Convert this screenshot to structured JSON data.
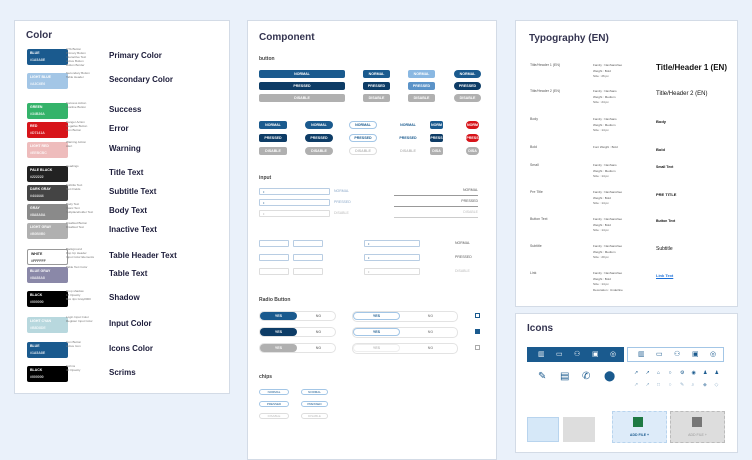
{
  "color": {
    "title": "Color",
    "rows": [
      {
        "swatch": "BLUE",
        "code": "#1A5A8E",
        "bg": "#1a5a8e",
        "desc": [
          "CTA Button",
          "Primary Button",
          "Interactive Text",
          "Active Button",
          "Button Border"
        ],
        "label": "Primary Color"
      },
      {
        "swatch": "LIGHT BLUE",
        "code": "#A3C6E6",
        "bg": "#a3c6e6",
        "desc": [
          "Secondary Button",
          "Table Header"
        ],
        "label": "Secondary Color"
      },
      {
        "swatch": "GREEN",
        "code": "#34B36A",
        "bg": "#34b36a",
        "desc": [
          "Success Action",
          "Positive Button"
        ],
        "label": "Success"
      },
      {
        "swatch": "RED",
        "code": "#D7141A",
        "bg": "#d7141a",
        "desc": [
          "Danger Action",
          "Negative Button",
          "Icon Button"
        ],
        "label": "Error"
      },
      {
        "swatch": "LIGHT RED",
        "code": "#EEBCBC",
        "bg": "#eebcbc",
        "desc": [
          "Warning Action",
          "Alert"
        ],
        "label": "Warning"
      },
      {
        "swatch": "PALE BLACK",
        "code": "#222222",
        "bg": "#222222",
        "desc": [
          "Headings"
        ],
        "label": "Title Text"
      },
      {
        "swatch": "DARK GRAY",
        "code": "#444444",
        "bg": "#444444",
        "desc": [
          "Subtitle Text",
          "Text Fields"
        ],
        "label": "Subtitle Text"
      },
      {
        "swatch": "GRAY",
        "code": "#8A8A8A",
        "bg": "#8a8a8a",
        "desc": [
          "Body Text",
          "Basic Text",
          "Subplaceholder Text"
        ],
        "label": "Body Text"
      },
      {
        "swatch": "LIGHT GRAY",
        "code": "#B0B0B0",
        "bg": "#b0b0b0",
        "desc": [
          "Disabled Button",
          "Disabled Text"
        ],
        "label": "Inactive Text"
      },
      {
        "swatch": "WHITE",
        "code": "#FFFFFF",
        "bg": "#ffffff",
        "desc": [
          "Background",
          "Pop Up Header",
          "Input Color Elements"
        ],
        "label": "Table Header Text"
      },
      {
        "swatch": "BLUE GRAY",
        "code": "#8A88A8",
        "bg": "#8a88a8",
        "desc": [
          "Table Text Color"
        ],
        "label": "Table Text"
      },
      {
        "swatch": "BLACK",
        "code": "#000000",
        "bg": "#000000",
        "desc": [
          "Drop shadow",
          "16 Opacity",
          "Box 4px Gray#000"
        ],
        "label": "Shadow"
      },
      {
        "swatch": "LIGHT CYAN",
        "code": "#B8D8DE",
        "bg": "#b8d8de",
        "desc": [
          "Login Input Color",
          "Register Input Color"
        ],
        "label": "Input Color"
      },
      {
        "swatch": "BLUE",
        "code": "#1A5A8E",
        "bg": "#1a5a8e",
        "desc": [
          "Icon Button",
          "Active Icon"
        ],
        "label": "Icons Color"
      },
      {
        "swatch": "BLACK",
        "code": "#000000",
        "bg": "#000000",
        "desc": [
          "Scrims",
          "40 Opacity"
        ],
        "label": "Scrims"
      }
    ]
  },
  "component": {
    "title": "Component",
    "button_section": "button",
    "input_section": "input",
    "radio_section": "Radio Button",
    "chips_section": "chips",
    "states": [
      "NORMAL",
      "PRESSED",
      "DISABLE"
    ],
    "short_states": [
      "NORM",
      "PRESS",
      "DISA"
    ],
    "radio_yes": "YES",
    "radio_no": "NO"
  },
  "typography": {
    "title": "Typography (EN)",
    "rows": [
      {
        "name": "Title/Header 1 (EN)",
        "spec": [
          "Family : NanSansNeo",
          "Weight : Bold",
          "Size : 26 px"
        ],
        "sample": "Title/Header 1 (EN)"
      },
      {
        "name": "Title/Header 2 (EN)",
        "spec": [
          "Family : NanSans",
          "Weight : Medium",
          "Size : 24 px"
        ],
        "sample": "Title/Header 2 (EN)"
      },
      {
        "name": "Body",
        "spec": [
          "Family : NanSans",
          "Weight : Medium",
          "Size : 14 px"
        ],
        "sample": "Body"
      },
      {
        "name": "Bold",
        "spec": [
          "Font Weight : Bold"
        ],
        "sample": "Bold"
      },
      {
        "name": "Small",
        "spec": [
          "Family : NanSans",
          "Weight : Medium",
          "Size : 14 px"
        ],
        "sample": "Small Text"
      },
      {
        "name": "Pre Title",
        "spec": [
          "Family : NanSansNeo",
          "Weight : Bold",
          "Size : 14 px"
        ],
        "sample": "PRE TITLE"
      },
      {
        "name": "Button Text",
        "spec": [
          "Family : NanSansNeo",
          "Weight : Bold",
          "Size : 14 px"
        ],
        "sample": "Button Text"
      },
      {
        "name": "Subtitle",
        "spec": [
          "Family : NanSansNeo",
          "Weight : Medium",
          "Size : 20 px"
        ],
        "sample": "Subtitle"
      },
      {
        "name": "Link",
        "spec": [
          "Family : NanSansNeo",
          "Weight : Bold",
          "Size : 14 px",
          "Decoration : Underline"
        ],
        "sample": "Link Text"
      }
    ]
  },
  "icons": {
    "title": "Icons",
    "add_file": "ADD FILE +",
    "accent": "#1a5a8e"
  }
}
